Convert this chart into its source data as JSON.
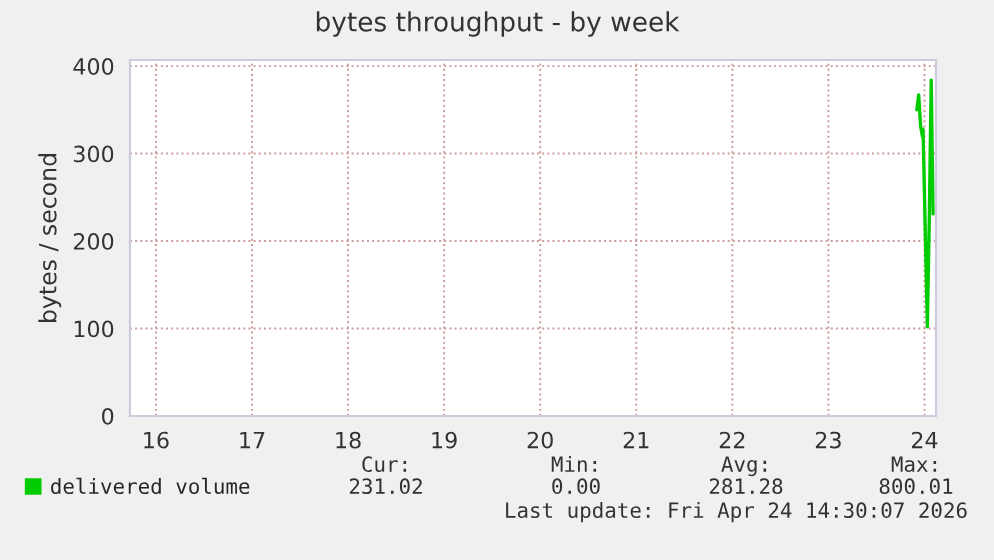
{
  "chart_data": {
    "type": "line",
    "title": "bytes throughput - by week",
    "ylabel": "bytes / second",
    "x": [
      23.92,
      23.94,
      23.96,
      23.98,
      23.985,
      24.03,
      24.05,
      24.07,
      24.09
    ],
    "series": [
      {
        "name": "delivered volume",
        "color": "#00cc00",
        "values": [
          350,
          367,
          331,
          319,
          328,
          102,
          224,
          384,
          231
        ]
      }
    ],
    "xlim": [
      15.73,
      24.12
    ],
    "xticks": [
      16,
      17,
      18,
      19,
      20,
      21,
      22,
      23,
      24
    ],
    "ylim": [
      0,
      407
    ],
    "yticks": [
      0,
      100,
      200,
      300,
      400
    ],
    "grid": true,
    "legend": "bottom left",
    "annotations": [
      "Cur:",
      "Min:",
      "Avg:",
      "Max:",
      "231.02",
      "0.00",
      "281.28",
      "800.01",
      "Last update: Fri Apr 24 14:30:07 2026"
    ]
  }
}
